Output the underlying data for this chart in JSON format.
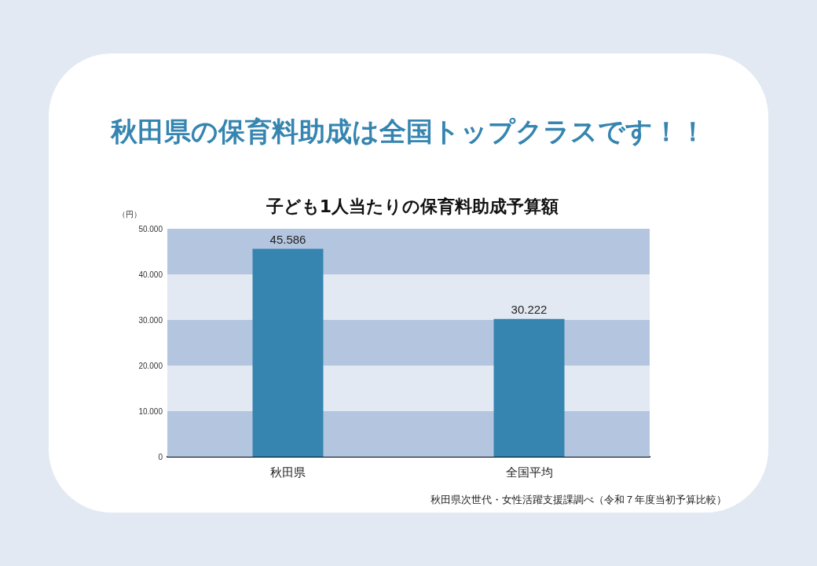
{
  "chart_data": {
    "type": "bar",
    "title": "秋田県の保育料助成は全国トップクラスです！！",
    "subtitle": "子ども1人当たりの保育料助成予算額",
    "ylabel": "（円）",
    "categories": [
      "秋田県",
      "全国平均"
    ],
    "values": [
      45586,
      30222
    ],
    "value_labels": [
      "45.586",
      "30.222"
    ],
    "color": "#3585b0",
    "ylim": [
      0,
      50000
    ],
    "yticks": [
      {
        "value": 0,
        "label": "0"
      },
      {
        "value": 10000,
        "label": "10.000"
      },
      {
        "value": 20000,
        "label": "20.000"
      },
      {
        "value": 30000,
        "label": "30.000"
      },
      {
        "value": 40000,
        "label": "40.000"
      },
      {
        "value": 50000,
        "label": "50.000"
      }
    ],
    "bands": [
      {
        "axis": "y",
        "from": 0,
        "to": 10000,
        "color": "#b4c5df"
      },
      {
        "axis": "y",
        "from": 10000,
        "to": 20000,
        "color": "#e3e9f3"
      },
      {
        "axis": "y",
        "from": 20000,
        "to": 30000,
        "color": "#b4c5df"
      },
      {
        "axis": "y",
        "from": 30000,
        "to": 40000,
        "color": "#e3e9f3"
      },
      {
        "axis": "y",
        "from": 40000,
        "to": 50000,
        "color": "#b4c5df"
      }
    ],
    "annotations": [
      "秋田県次世代・女性活躍支援課調べ（令和７年度当初予算比較）"
    ]
  }
}
